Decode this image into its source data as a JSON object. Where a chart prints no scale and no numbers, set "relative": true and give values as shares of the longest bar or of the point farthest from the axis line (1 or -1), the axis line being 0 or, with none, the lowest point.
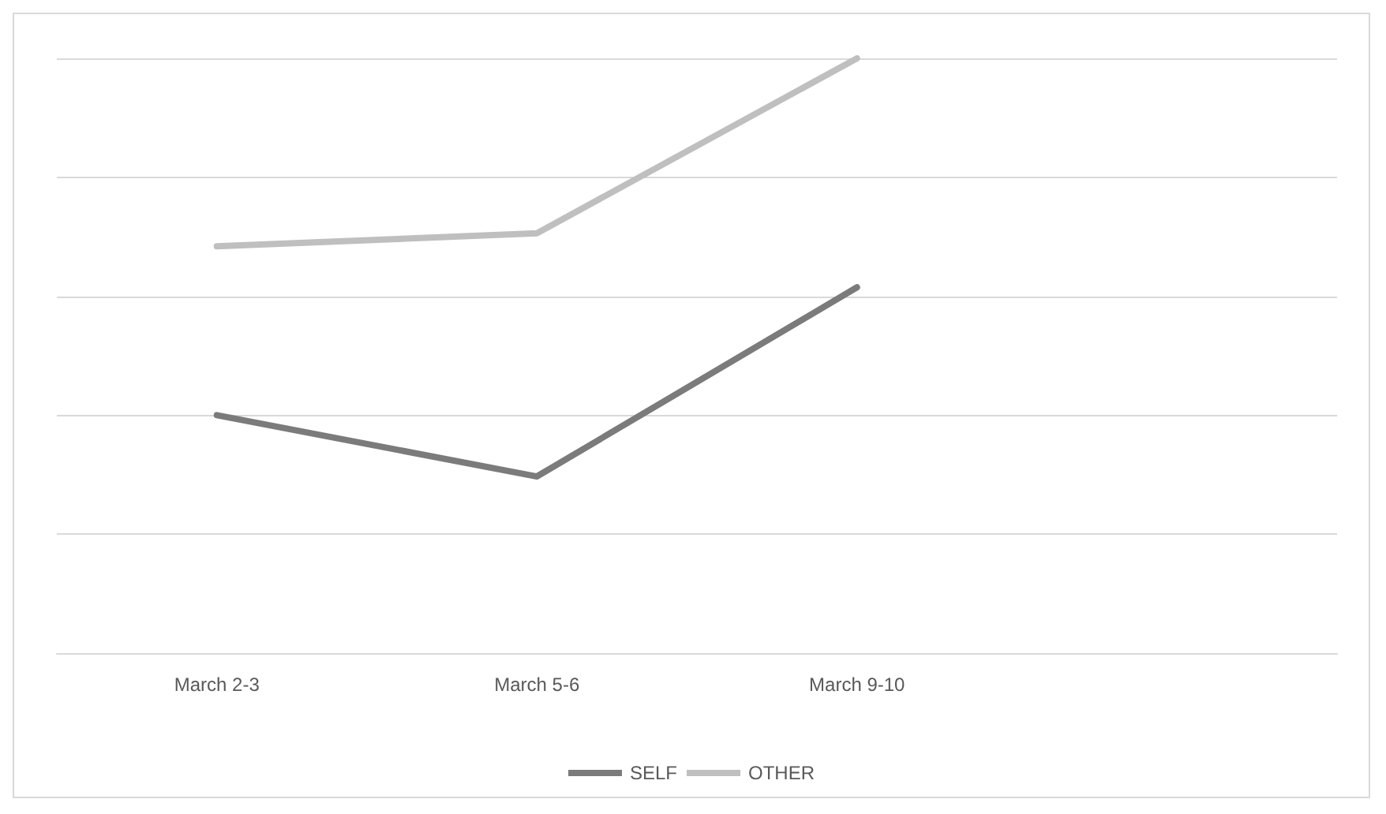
{
  "chart_data": {
    "type": "line",
    "relative": true,
    "categories": [
      "March 2-3",
      "March 5-6",
      "March 9-10",
      null
    ],
    "series": [
      {
        "name": "SELF",
        "color": "#7b7b7b",
        "values": [
          0.4,
          0.297,
          0.615,
          null
        ]
      },
      {
        "name": "OTHER",
        "color": "#bfbfbf",
        "values": [
          0.684,
          0.706,
          1,
          null
        ]
      }
    ],
    "grid": "y",
    "legend": "bottom",
    "marker": "none",
    "line_style": "solid"
  }
}
